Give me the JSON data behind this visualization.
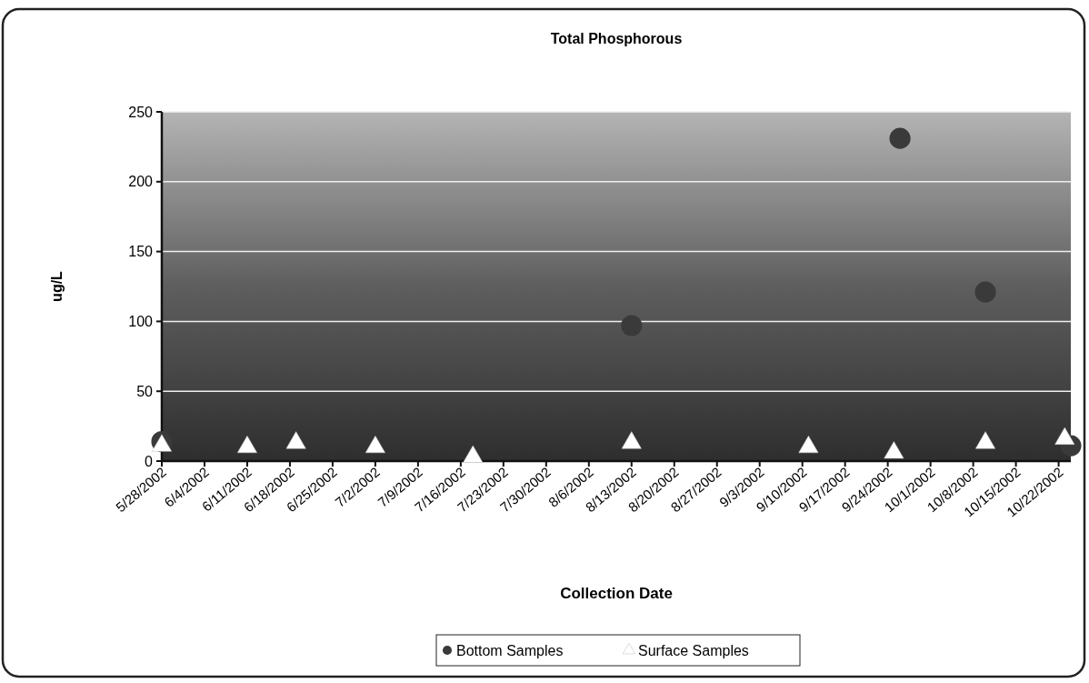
{
  "chart_data": {
    "type": "scatter",
    "title": "Total Phosphorous",
    "xlabel": "Collection Date",
    "ylabel": "ug/L",
    "xlim": [
      "2002-05-28",
      "2002-10-24"
    ],
    "xticks": [
      {
        "value": "2002-05-28",
        "label": "5/28/2002"
      },
      {
        "value": "2002-06-04",
        "label": "6/4/2002"
      },
      {
        "value": "2002-06-11",
        "label": "6/11/2002"
      },
      {
        "value": "2002-06-18",
        "label": "6/18/2002"
      },
      {
        "value": "2002-06-25",
        "label": "6/25/2002"
      },
      {
        "value": "2002-07-02",
        "label": "7/2/2002"
      },
      {
        "value": "2002-07-09",
        "label": "7/9/2002"
      },
      {
        "value": "2002-07-16",
        "label": "7/16/2002"
      },
      {
        "value": "2002-07-23",
        "label": "7/23/2002"
      },
      {
        "value": "2002-07-30",
        "label": "7/30/2002"
      },
      {
        "value": "2002-08-06",
        "label": "8/6/2002"
      },
      {
        "value": "2002-08-13",
        "label": "8/13/2002"
      },
      {
        "value": "2002-08-20",
        "label": "8/20/2002"
      },
      {
        "value": "2002-08-27",
        "label": "8/27/2002"
      },
      {
        "value": "2002-09-03",
        "label": "9/3/2002"
      },
      {
        "value": "2002-09-10",
        "label": "9/10/2002"
      },
      {
        "value": "2002-09-17",
        "label": "9/17/2002"
      },
      {
        "value": "2002-09-24",
        "label": "9/24/2002"
      },
      {
        "value": "2002-10-01",
        "label": "10/1/2002"
      },
      {
        "value": "2002-10-08",
        "label": "10/8/2002"
      },
      {
        "value": "2002-10-15",
        "label": "10/15/2002"
      },
      {
        "value": "2002-10-22",
        "label": "10/22/2002"
      }
    ],
    "ylim": [
      0,
      250
    ],
    "yticks": [
      0,
      50,
      100,
      150,
      200,
      250
    ],
    "grid": "y",
    "legend": "bottom",
    "series": [
      {
        "name": "Bottom Samples",
        "color": "#3a3a3a",
        "marker": "circle",
        "x": [
          "2002-05-28",
          "2002-08-13",
          "2002-09-26",
          "2002-10-10",
          "2002-10-24"
        ],
        "values": [
          14,
          97,
          231,
          121,
          11
        ]
      },
      {
        "name": "Surface Samples",
        "color": "#ffffff",
        "marker": "triangle",
        "x": [
          "2002-05-28",
          "2002-06-11",
          "2002-06-19",
          "2002-07-02",
          "2002-07-18",
          "2002-08-13",
          "2002-09-11",
          "2002-09-25",
          "2002-10-10",
          "2002-10-23"
        ],
        "values": [
          11,
          10,
          13,
          10,
          3,
          13,
          10,
          6,
          13,
          16
        ]
      }
    ]
  }
}
